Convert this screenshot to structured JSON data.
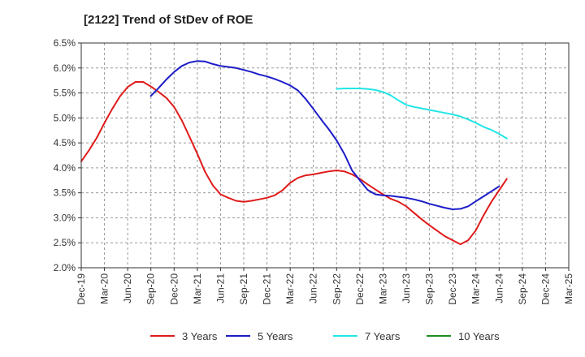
{
  "chart_data": {
    "type": "line",
    "title": "[2122]  Trend of StDev of ROE",
    "xlabel": "",
    "ylabel": "",
    "x_tick_labels": [
      "Dec-19",
      "Mar-20",
      "Jun-20",
      "Sep-20",
      "Dec-20",
      "Mar-21",
      "Jun-21",
      "Sep-21",
      "Dec-21",
      "Mar-22",
      "Jun-22",
      "Sep-22",
      "Dec-22",
      "Mar-23",
      "Jun-23",
      "Sep-23",
      "Dec-23",
      "Mar-24",
      "Jun-24",
      "Sep-24",
      "Dec-24",
      "Mar-25"
    ],
    "y_tick_labels": [
      "2.0%",
      "2.5%",
      "3.0%",
      "3.5%",
      "4.0%",
      "4.5%",
      "5.0%",
      "5.5%",
      "6.0%",
      "6.5%"
    ],
    "ylim": [
      2.0,
      6.5
    ],
    "grid": true,
    "legend_position": "bottom",
    "series": [
      {
        "name": "3 Years",
        "color": "#e01b1b",
        "points": [
          [
            "Dec-19",
            4.13
          ],
          [
            "Jan-20",
            4.35
          ],
          [
            "Feb-20",
            4.6
          ],
          [
            "Mar-20",
            4.9
          ],
          [
            "Apr-20",
            5.18
          ],
          [
            "May-20",
            5.43
          ],
          [
            "Jun-20",
            5.62
          ],
          [
            "Jul-20",
            5.72
          ],
          [
            "Aug-20",
            5.72
          ],
          [
            "Sep-20",
            5.63
          ],
          [
            "Oct-20",
            5.52
          ],
          [
            "Nov-20",
            5.4
          ],
          [
            "Dec-20",
            5.22
          ],
          [
            "Jan-21",
            4.95
          ],
          [
            "Feb-21",
            4.62
          ],
          [
            "Mar-21",
            4.28
          ],
          [
            "Apr-21",
            3.92
          ],
          [
            "May-21",
            3.65
          ],
          [
            "Jun-21",
            3.47
          ],
          [
            "Jul-21",
            3.4
          ],
          [
            "Aug-21",
            3.34
          ],
          [
            "Sep-21",
            3.32
          ],
          [
            "Oct-21",
            3.34
          ],
          [
            "Nov-21",
            3.37
          ],
          [
            "Dec-21",
            3.4
          ],
          [
            "Jan-22",
            3.45
          ],
          [
            "Feb-22",
            3.55
          ],
          [
            "Mar-22",
            3.7
          ],
          [
            "Apr-22",
            3.8
          ],
          [
            "May-22",
            3.85
          ],
          [
            "Jun-22",
            3.87
          ],
          [
            "Jul-22",
            3.9
          ],
          [
            "Aug-22",
            3.93
          ],
          [
            "Sep-22",
            3.95
          ],
          [
            "Oct-22",
            3.93
          ],
          [
            "Nov-22",
            3.87
          ],
          [
            "Dec-22",
            3.78
          ],
          [
            "Jan-23",
            3.67
          ],
          [
            "Feb-23",
            3.57
          ],
          [
            "Mar-23",
            3.47
          ],
          [
            "Apr-23",
            3.38
          ],
          [
            "May-23",
            3.32
          ],
          [
            "Jun-23",
            3.23
          ],
          [
            "Jul-23",
            3.1
          ],
          [
            "Aug-23",
            2.97
          ],
          [
            "Sep-23",
            2.85
          ],
          [
            "Oct-23",
            2.74
          ],
          [
            "Nov-23",
            2.63
          ],
          [
            "Dec-23",
            2.55
          ],
          [
            "Jan-24",
            2.47
          ],
          [
            "Feb-24",
            2.55
          ],
          [
            "Mar-24",
            2.75
          ],
          [
            "Apr-24",
            3.05
          ],
          [
            "May-24",
            3.32
          ],
          [
            "Jun-24",
            3.55
          ],
          [
            "Jul-24",
            3.78
          ]
        ]
      },
      {
        "name": "5 Years",
        "color": "#1c1cc8",
        "points": [
          [
            "Sep-20",
            5.44
          ],
          [
            "Oct-20",
            5.6
          ],
          [
            "Nov-20",
            5.77
          ],
          [
            "Dec-20",
            5.92
          ],
          [
            "Jan-21",
            6.04
          ],
          [
            "Feb-21",
            6.11
          ],
          [
            "Mar-21",
            6.14
          ],
          [
            "Apr-21",
            6.13
          ],
          [
            "May-21",
            6.08
          ],
          [
            "Jun-21",
            6.04
          ],
          [
            "Jul-21",
            6.02
          ],
          [
            "Aug-21",
            6.0
          ],
          [
            "Sep-21",
            5.96
          ],
          [
            "Oct-21",
            5.92
          ],
          [
            "Nov-21",
            5.87
          ],
          [
            "Dec-21",
            5.83
          ],
          [
            "Jan-22",
            5.78
          ],
          [
            "Feb-22",
            5.72
          ],
          [
            "Mar-22",
            5.65
          ],
          [
            "Apr-22",
            5.55
          ],
          [
            "May-22",
            5.38
          ],
          [
            "Jun-22",
            5.18
          ],
          [
            "Jul-22",
            4.97
          ],
          [
            "Aug-22",
            4.77
          ],
          [
            "Sep-22",
            4.55
          ],
          [
            "Oct-22",
            4.28
          ],
          [
            "Nov-22",
            3.95
          ],
          [
            "Dec-22",
            3.75
          ],
          [
            "Jan-23",
            3.56
          ],
          [
            "Feb-23",
            3.47
          ],
          [
            "Mar-23",
            3.45
          ],
          [
            "Apr-23",
            3.44
          ],
          [
            "May-23",
            3.42
          ],
          [
            "Jun-23",
            3.4
          ],
          [
            "Jul-23",
            3.37
          ],
          [
            "Aug-23",
            3.33
          ],
          [
            "Sep-23",
            3.28
          ],
          [
            "Oct-23",
            3.24
          ],
          [
            "Nov-23",
            3.2
          ],
          [
            "Dec-23",
            3.17
          ],
          [
            "Jan-24",
            3.18
          ],
          [
            "Feb-24",
            3.23
          ],
          [
            "Mar-24",
            3.33
          ],
          [
            "Apr-24",
            3.43
          ],
          [
            "May-24",
            3.53
          ],
          [
            "Jun-24",
            3.63
          ]
        ]
      },
      {
        "name": "7 Years",
        "color": "#22e6e6",
        "points": [
          [
            "Sep-22",
            5.58
          ],
          [
            "Oct-22",
            5.59
          ],
          [
            "Nov-22",
            5.59
          ],
          [
            "Dec-22",
            5.59
          ],
          [
            "Jan-23",
            5.58
          ],
          [
            "Feb-23",
            5.56
          ],
          [
            "Mar-23",
            5.52
          ],
          [
            "Apr-23",
            5.45
          ],
          [
            "May-23",
            5.35
          ],
          [
            "Jun-23",
            5.26
          ],
          [
            "Jul-23",
            5.22
          ],
          [
            "Aug-23",
            5.19
          ],
          [
            "Sep-23",
            5.16
          ],
          [
            "Oct-23",
            5.13
          ],
          [
            "Nov-23",
            5.1
          ],
          [
            "Dec-23",
            5.07
          ],
          [
            "Jan-24",
            5.03
          ],
          [
            "Feb-24",
            4.97
          ],
          [
            "Mar-24",
            4.9
          ],
          [
            "Apr-24",
            4.82
          ],
          [
            "May-24",
            4.76
          ],
          [
            "Jun-24",
            4.68
          ],
          [
            "Jul-24",
            4.59
          ]
        ]
      },
      {
        "name": "10 Years",
        "color": "#1e8c1e",
        "points": []
      }
    ]
  }
}
